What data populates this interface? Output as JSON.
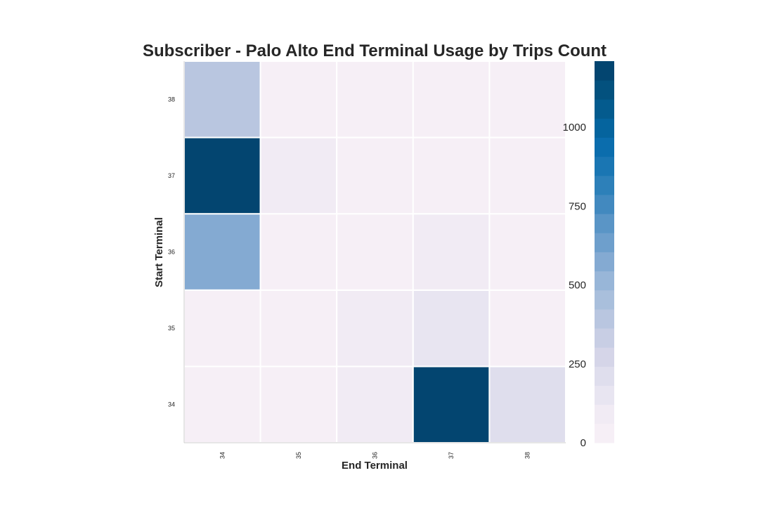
{
  "chart_data": {
    "type": "heatmap",
    "title": "Subscriber - Palo Alto End Terminal Usage by Trips Count",
    "xlabel": "End Terminal",
    "ylabel": "Start Terminal",
    "x_categories": [
      "34",
      "35",
      "36",
      "37",
      "38"
    ],
    "y_categories": [
      "34",
      "35",
      "36",
      "37",
      "38"
    ],
    "values": [
      [
        55,
        10,
        100,
        1200,
        185
      ],
      [
        10,
        40,
        70,
        160,
        15
      ],
      [
        545,
        40,
        10,
        70,
        50
      ],
      [
        1200,
        70,
        45,
        15,
        15
      ],
      [
        390,
        15,
        45,
        15,
        15
      ]
    ],
    "colorbar": {
      "ticks": [
        "0",
        "250",
        "500",
        "750",
        "1000"
      ],
      "tick_values": [
        0,
        250,
        500,
        750,
        1000
      ],
      "range": [
        0,
        1210
      ],
      "levels": 20,
      "colormap": "PuBu",
      "colors": [
        "#f6eff6",
        "#f1ebf4",
        "#e8e5f1",
        "#dfdeed",
        "#d5d5e8",
        "#c8cee4",
        "#b9c6e0",
        "#a9bfdc",
        "#98b6d8",
        "#84aad2",
        "#6e9fcc",
        "#5a95c6",
        "#4289bf",
        "#2d80b9",
        "#1a76b3",
        "#0b6dad",
        "#05649e",
        "#045b8e",
        "#03517e",
        "#034570"
      ]
    },
    "grid": false
  }
}
